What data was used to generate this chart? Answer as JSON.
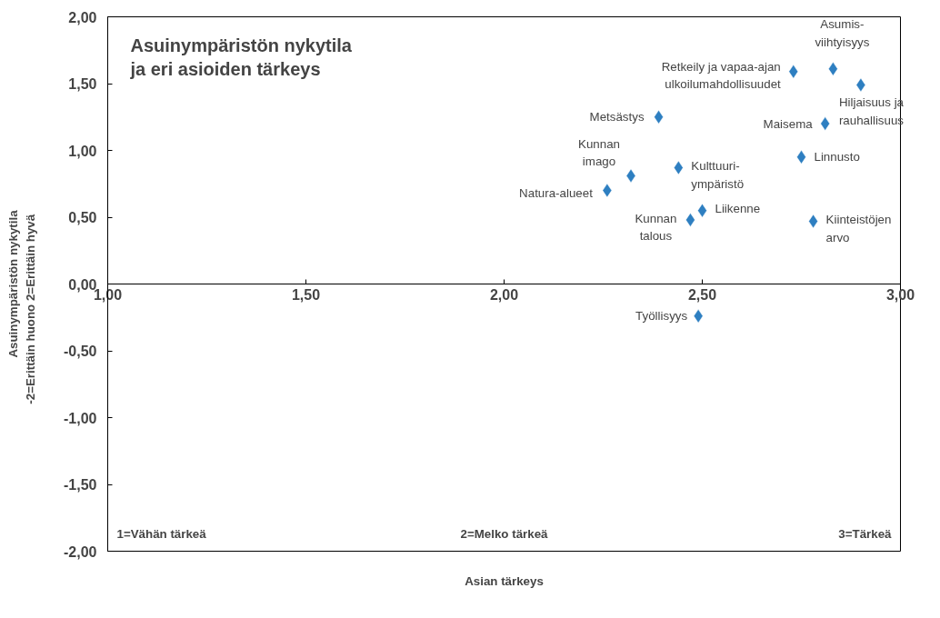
{
  "chart_data": {
    "type": "scatter",
    "title": "Asuinympäristön nykytila\nja eri asioiden tärkeys",
    "xlabel": "Asian tärkeys",
    "ylabel": "Asuinympäristön nykytila\n-2=Erittäin huono                2=Erittäin hyvä",
    "x": [
      2.83,
      2.73,
      2.9,
      2.39,
      2.81,
      2.75,
      2.44,
      2.32,
      2.26,
      2.5,
      2.47,
      2.78,
      2.49
    ],
    "series": [
      {
        "color": "#2e7fc1",
        "values": [
          1.61,
          1.59,
          1.49,
          1.25,
          1.2,
          0.95,
          0.87,
          0.81,
          0.7,
          0.55,
          0.48,
          0.47,
          -0.24
        ]
      }
    ],
    "annotations": [
      {
        "text": "Asumis-\nviihtyisyys",
        "x": 2.83,
        "y": 1.61
      },
      {
        "text": "Retkeily ja vapaa-ajan\nulkoilumahdollisuudet",
        "x": 2.73,
        "y": 1.59
      },
      {
        "text": "Hiljaisuus ja\nrauhallisuus",
        "x": 2.9,
        "y": 1.49
      },
      {
        "text": "Metsästys",
        "x": 2.39,
        "y": 1.25
      },
      {
        "text": "Maisema",
        "x": 2.81,
        "y": 1.2
      },
      {
        "text": "Linnusto",
        "x": 2.75,
        "y": 0.95
      },
      {
        "text": "Kulttuuri-\nympäristö",
        "x": 2.44,
        "y": 0.87
      },
      {
        "text": "Kunnan\nimago",
        "x": 2.32,
        "y": 0.81
      },
      {
        "text": "Natura-alueet",
        "x": 2.26,
        "y": 0.7
      },
      {
        "text": "Liikenne",
        "x": 2.5,
        "y": 0.55
      },
      {
        "text": "Kunnan\ntalous",
        "x": 2.47,
        "y": 0.48
      },
      {
        "text": "Kiinteistöjen\narvo",
        "x": 2.78,
        "y": 0.47
      },
      {
        "text": "Työllisyys",
        "x": 2.49,
        "y": -0.24
      },
      "1=Vähän tärkeä",
      "2=Melko tärkeä",
      "3=Tärkeä"
    ],
    "xlim": [
      1,
      3
    ],
    "ylim": [
      -2,
      2
    ],
    "xticks": [
      {
        "value": 1,
        "label": "1,00"
      },
      {
        "value": 1.5,
        "label": "1,50"
      },
      {
        "value": 2,
        "label": "2,00"
      },
      {
        "value": 2.5,
        "label": "2,50"
      },
      {
        "value": 3,
        "label": "3,00"
      }
    ],
    "yticks": [
      {
        "value": -2,
        "label": "-2,00"
      },
      {
        "value": -1.5,
        "label": "-1,50"
      },
      {
        "value": -1,
        "label": "-1,00"
      },
      {
        "value": -0.5,
        "label": "-0,50"
      },
      {
        "value": 0,
        "label": "0,00"
      },
      {
        "value": 0.5,
        "label": "0,50"
      },
      {
        "value": 1,
        "label": "1,00"
      },
      {
        "value": 1.5,
        "label": "1,50"
      },
      {
        "value": 2,
        "label": "2,00"
      }
    ],
    "marker": "diamond",
    "grid": false
  }
}
